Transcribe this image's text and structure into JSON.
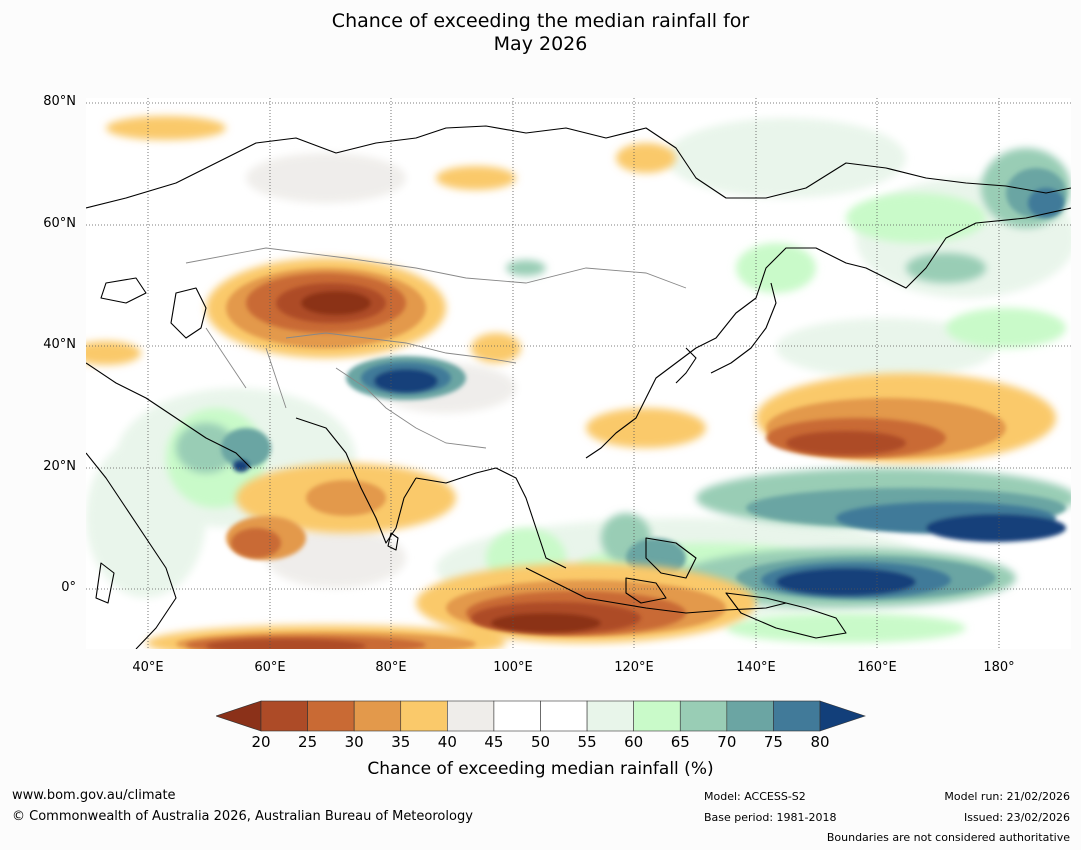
{
  "title_line1": "Chance of exceeding the median rainfall for",
  "title_line2": "May 2026",
  "lat_labels": [
    "80°N",
    "60°N",
    "40°N",
    "20°N",
    "0°"
  ],
  "lon_labels": [
    "40°E",
    "60°E",
    "80°E",
    "100°E",
    "120°E",
    "140°E",
    "160°E",
    "180°"
  ],
  "colorbar": {
    "ticks": [
      "20",
      "25",
      "30",
      "35",
      "40",
      "45",
      "50",
      "55",
      "60",
      "65",
      "70",
      "75",
      "80"
    ],
    "colors": [
      "#8b3119",
      "#ad4b27",
      "#c96a34",
      "#e3994b",
      "#fac96a",
      "#efedea",
      "#ffffff",
      "#ffffff",
      "#e8f5ea",
      "#c9fac9",
      "#99cdb5",
      "#6ba5a3",
      "#417a99",
      "#123f7a"
    ],
    "title": "Chance of exceeding median rainfall (%)"
  },
  "footer": {
    "url": "www.bom.gov.au/climate",
    "copyright": "© Commonwealth of Australia 2026, Australian Bureau of Meteorology",
    "model": "Model: ACCESS-S2",
    "base_period": "Base period: 1981-2018",
    "model_run": "Model run: 21/02/2026",
    "issued": "Issued: 23/02/2026",
    "disclaimer": "Boundaries are not considered authoritative"
  }
}
